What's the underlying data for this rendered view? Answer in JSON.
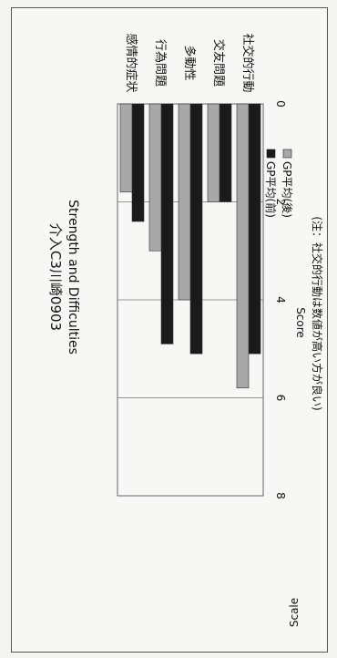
{
  "chart_data": {
    "type": "bar",
    "orientation": "horizontal",
    "rotated_page": "90deg-clockwise",
    "title": "介入C3川崎0903",
    "subtitle": "Strength and Difficulties",
    "xlabel": "Score",
    "ylabel": "Scale",
    "note": "(注：社交的行動は数値が高い方が良い)",
    "categories": [
      "社交的行動",
      "交友問題",
      "多動性",
      "行為問題",
      "感情的症状"
    ],
    "xlim": [
      0,
      8
    ],
    "x_ticks": [
      "0",
      "2",
      "4",
      "6",
      "8"
    ],
    "grid": true,
    "legend_position": "right",
    "series": [
      {
        "name": "GP平均(前)",
        "color": "#1a1a1a",
        "values": [
          5.1,
          2.0,
          5.1,
          4.9,
          2.4
        ]
      },
      {
        "name": "GP平均(後)",
        "color": "#a8a8a8",
        "values": [
          5.8,
          2.0,
          4.0,
          3.0,
          1.8
        ]
      }
    ]
  }
}
